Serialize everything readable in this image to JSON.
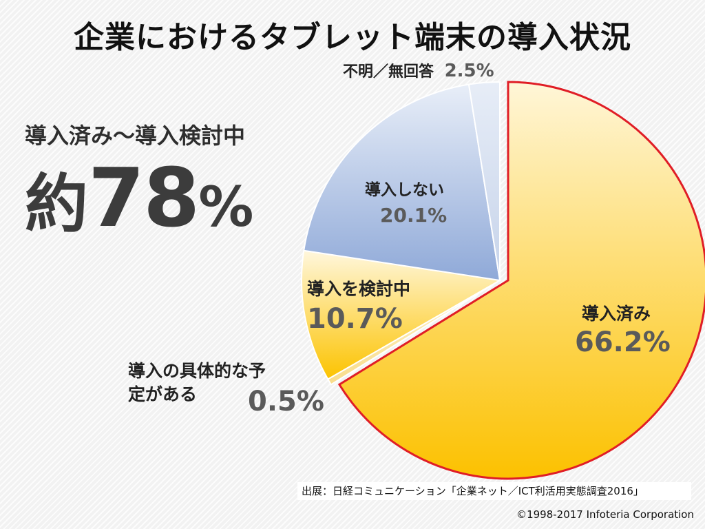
{
  "title": "企業におけるタブレット端末の導入状況",
  "summary": {
    "label": "導入済み〜導入検討中",
    "prefix": "約",
    "value": "78",
    "unit": "%"
  },
  "chart_data": {
    "type": "pie",
    "slices": [
      {
        "name": "導入済み",
        "value": 66.2,
        "label": "66.2%",
        "color": "#fcc935"
      },
      {
        "name": "導入の具体的な予定がある",
        "value": 0.5,
        "label": "0.5%",
        "color": "#fbe9a6"
      },
      {
        "name": "導入を検討中",
        "value": 10.7,
        "label": "10.7%",
        "color": "#fde7a0"
      },
      {
        "name": "導入しない",
        "value": 20.1,
        "label": "20.1%",
        "color": "#aebfe0"
      },
      {
        "name": "不明／無回答",
        "value": 2.5,
        "label": "2.5%",
        "color": "#d3ddee"
      }
    ],
    "highlight_color": "#e01d26"
  },
  "source": "出展：日経コミュニケーション「企業ネット／ICT利活用実態調査2016」",
  "copyright": "©1998-2017 Infoteria Corporation"
}
